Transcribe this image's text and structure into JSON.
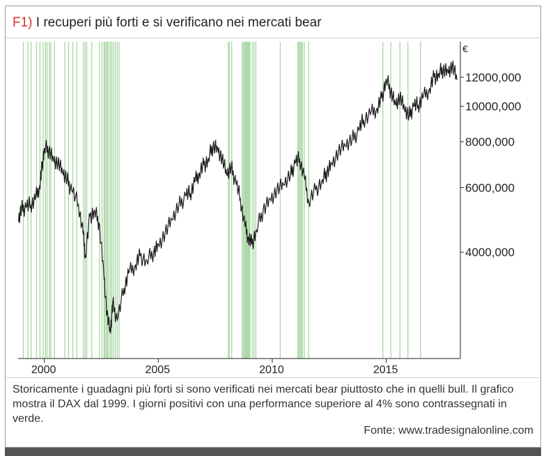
{
  "header": {
    "figure_label": "F1)",
    "title": "I recuperi più forti e si verificano nei mercati bear"
  },
  "caption": "Storicamente i guadagni più forti si sono verificati nei mercati bear piuttosto che in quelli bull. Il grafico mostra il DAX dal 1999. I giorni positivi con una performance superiore al 4% sono contrassegnati in verde.",
  "source": "Fonte: www.tradesignalonline.com",
  "colors": {
    "line": "#1a1a1a",
    "highlight": "#a9d6a3",
    "accent": "#d6322e"
  },
  "chart_data": {
    "type": "line",
    "title": "",
    "xlabel": "",
    "ylabel": "€",
    "y_scale": "log",
    "xlim": [
      1998.85,
      2018.25
    ],
    "ylim": [
      2050,
      15000
    ],
    "x_ticks": [
      2000,
      2005,
      2010,
      2015
    ],
    "x_tick_labels": [
      "2000",
      "2005",
      "2010",
      "2015"
    ],
    "y_ticks": [
      4000,
      6000,
      8000,
      10000,
      12000
    ],
    "y_tick_labels": [
      "4000,000",
      "6000,000",
      "8000,000",
      "10000,000",
      "12000,000"
    ],
    "series": [
      {
        "x": [
          1998.85,
          1999.0,
          1999.2,
          1999.4,
          1999.6,
          1999.8,
          1999.9,
          2000.0,
          2000.2,
          2000.4,
          2000.6,
          2000.8,
          2001.0,
          2001.2,
          2001.5,
          2001.7,
          2001.8,
          2002.0,
          2002.2,
          2002.4,
          2002.6,
          2002.75,
          2002.9,
          2003.0,
          2003.2,
          2003.5,
          2003.7,
          2004.0,
          2004.2,
          2004.5,
          2004.8,
          2005.0,
          2005.3,
          2005.6,
          2005.9,
          2006.2,
          2006.4,
          2006.6,
          2006.8,
          2007.0,
          2007.2,
          2007.4,
          2007.6,
          2007.8,
          2008.0,
          2008.2,
          2008.4,
          2008.6,
          2008.8,
          2008.95,
          2009.1,
          2009.3,
          2009.6,
          2009.9,
          2010.2,
          2010.5,
          2010.8,
          2011.0,
          2011.2,
          2011.4,
          2011.6,
          2011.9,
          2012.2,
          2012.4,
          2012.6,
          2012.9,
          2013.2,
          2013.5,
          2013.8,
          2014.0,
          2014.3,
          2014.6,
          2014.8,
          2015.0,
          2015.2,
          2015.4,
          2015.6,
          2015.8,
          2016.0,
          2016.2,
          2016.4,
          2016.6,
          2016.9,
          2017.1,
          2017.3,
          2017.5,
          2017.7,
          2017.9,
          2018.1
        ],
        "values": [
          4850,
          5250,
          5300,
          5400,
          5550,
          6100,
          6800,
          7700,
          7600,
          7200,
          7000,
          6600,
          6300,
          5900,
          5400,
          4500,
          3900,
          5000,
          5200,
          4800,
          3600,
          2700,
          2400,
          2900,
          2600,
          3200,
          3500,
          3700,
          3900,
          3800,
          4000,
          4200,
          4500,
          4900,
          5350,
          5700,
          5800,
          6200,
          6600,
          6900,
          7200,
          7800,
          7700,
          7200,
          6500,
          6800,
          6200,
          5600,
          4700,
          4400,
          4200,
          4600,
          5200,
          5600,
          5900,
          6100,
          6500,
          7000,
          7200,
          6400,
          5500,
          5900,
          6300,
          6600,
          7000,
          7500,
          7800,
          8100,
          8600,
          9200,
          9500,
          9900,
          10500,
          11900,
          11000,
          10200,
          10600,
          9800,
          9400,
          10000,
          10100,
          10500,
          11200,
          12000,
          12300,
          12600,
          12500,
          12900,
          11800
        ]
      }
    ],
    "highlight_dates": [
      1999.08,
      1999.28,
      1999.42,
      1999.66,
      1999.81,
      1999.95,
      2000.05,
      2000.12,
      2000.22,
      2000.28,
      2000.45,
      2000.9,
      2001.06,
      2001.25,
      2001.42,
      2001.72,
      2001.79,
      2001.86,
      2002.08,
      2002.42,
      2002.53,
      2002.62,
      2002.66,
      2002.72,
      2002.77,
      2002.83,
      2002.9,
      2002.96,
      2003.03,
      2003.12,
      2003.2,
      2003.28,
      2008.07,
      2008.12,
      2008.22,
      2008.68,
      2008.73,
      2008.78,
      2008.82,
      2008.86,
      2008.9,
      2008.94,
      2008.98,
      2009.02,
      2009.12,
      2009.2,
      2009.28,
      2010.35,
      2011.12,
      2011.17,
      2011.22,
      2011.27,
      2011.32,
      2011.4,
      2011.6,
      2014.85,
      2015.2,
      2015.6,
      2015.95,
      2016.5
    ]
  }
}
